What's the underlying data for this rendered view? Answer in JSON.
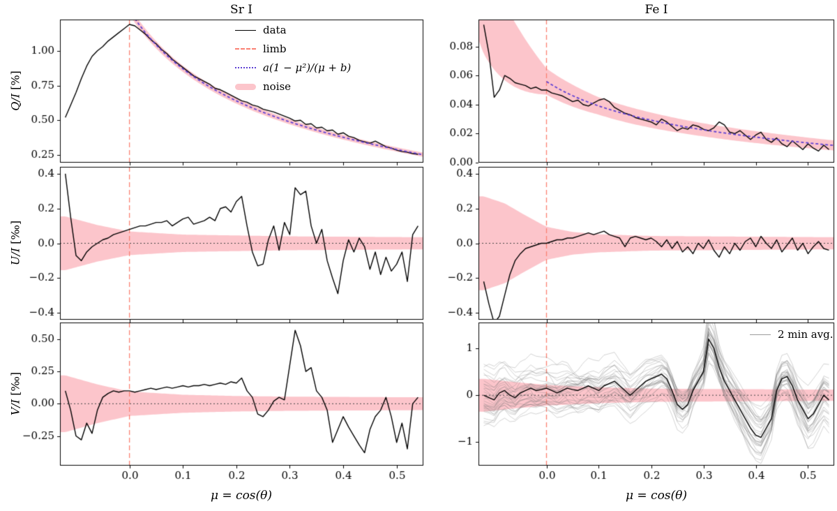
{
  "chart_data": {
    "type": "line",
    "titles": {
      "left": "Sr I",
      "right": "Fe I"
    },
    "xlabel": "μ = cos(θ)",
    "ylabels": {
      "q_math": "Q/I",
      "q_unit": " [%]",
      "u_math": "U/I",
      "u_unit": " [‰]",
      "v_math": "V/I",
      "v_unit": " [‰]"
    },
    "legend": {
      "data": "data",
      "limb": "limb",
      "fit": "a(1 − μ²)/(μ + b)",
      "noise": "noise",
      "avg": "2 min avg."
    },
    "colors": {
      "data": "#000000",
      "limb": "#fa8072",
      "fit": "#5d3fd3",
      "noise": "rgba(249,117,131,0.42)",
      "zero": "#444444",
      "ensemble": "rgba(110,110,110,0.30)"
    },
    "xlim": [
      -0.13,
      0.55
    ],
    "xticks": [
      0.0,
      0.1,
      0.2,
      0.3,
      0.4,
      0.5
    ],
    "xtick_labels": [
      "0.0",
      "0.1",
      "0.2",
      "0.3",
      "0.4",
      "0.5"
    ],
    "x": [
      -0.12,
      -0.11,
      -0.1,
      -0.09,
      -0.08,
      -0.07,
      -0.06,
      -0.05,
      -0.04,
      -0.03,
      -0.02,
      -0.01,
      0.0,
      0.01,
      0.02,
      0.03,
      0.04,
      0.05,
      0.06,
      0.07,
      0.08,
      0.09,
      0.1,
      0.11,
      0.12,
      0.13,
      0.14,
      0.15,
      0.16,
      0.17,
      0.18,
      0.19,
      0.2,
      0.21,
      0.22,
      0.23,
      0.24,
      0.25,
      0.26,
      0.27,
      0.28,
      0.29,
      0.3,
      0.31,
      0.32,
      0.33,
      0.34,
      0.35,
      0.36,
      0.37,
      0.38,
      0.39,
      0.4,
      0.41,
      0.42,
      0.43,
      0.44,
      0.45,
      0.46,
      0.47,
      0.48,
      0.49,
      0.5,
      0.51,
      0.52,
      0.53,
      0.54
    ],
    "panels": [
      {
        "key": "sr_q",
        "row": 0,
        "col": 0,
        "ylim": [
          0.195,
          1.225
        ],
        "yticks": [
          0.25,
          0.5,
          0.75,
          1.0
        ],
        "ytick_labels": [
          "0.25",
          "0.50",
          "0.75",
          "1.00"
        ],
        "fit": {
          "a": 0.276,
          "b": 0.214
        },
        "band_center": "fit",
        "band_halfwidth": [
          [
            -0.12,
            0.05
          ],
          [
            0.0,
            0.03
          ],
          [
            0.1,
            0.022
          ],
          [
            0.3,
            0.018
          ],
          [
            0.54,
            0.015
          ]
        ],
        "zero_line": false,
        "values": [
          0.52,
          0.61,
          0.7,
          0.8,
          0.89,
          0.96,
          1.0,
          1.03,
          1.07,
          1.1,
          1.13,
          1.16,
          1.19,
          1.18,
          1.15,
          1.12,
          1.08,
          1.05,
          1.01,
          0.98,
          0.94,
          0.91,
          0.88,
          0.85,
          0.82,
          0.8,
          0.78,
          0.76,
          0.73,
          0.72,
          0.7,
          0.68,
          0.66,
          0.64,
          0.63,
          0.61,
          0.6,
          0.58,
          0.57,
          0.56,
          0.545,
          0.53,
          0.515,
          0.495,
          0.5,
          0.47,
          0.475,
          0.445,
          0.45,
          0.425,
          0.43,
          0.4,
          0.41,
          0.385,
          0.375,
          0.355,
          0.345,
          0.335,
          0.35,
          0.33,
          0.31,
          0.3,
          0.285,
          0.275,
          0.27,
          0.26,
          0.255
        ]
      },
      {
        "key": "fe_q",
        "row": 0,
        "col": 1,
        "ylim": [
          0.0,
          0.0985
        ],
        "yticks": [
          0.0,
          0.02,
          0.04,
          0.06,
          0.08
        ],
        "ytick_labels": [
          "0.00",
          "0.02",
          "0.04",
          "0.06",
          "0.08"
        ],
        "fit": {
          "a": 0.0134,
          "b": 0.24
        },
        "band_center": "fit",
        "band_halfwidth": [
          [
            -0.12,
            0.035
          ],
          [
            -0.05,
            0.02
          ],
          [
            0.0,
            0.009
          ],
          [
            0.1,
            0.006
          ],
          [
            0.3,
            0.0045
          ],
          [
            0.54,
            0.0035
          ]
        ],
        "zero_line": false,
        "values": [
          0.095,
          0.075,
          0.045,
          0.05,
          0.06,
          0.058,
          0.055,
          0.054,
          0.053,
          0.051,
          0.052,
          0.05,
          0.05,
          0.048,
          0.047,
          0.046,
          0.044,
          0.042,
          0.043,
          0.04,
          0.039,
          0.041,
          0.043,
          0.044,
          0.042,
          0.038,
          0.036,
          0.034,
          0.033,
          0.031,
          0.03,
          0.029,
          0.028,
          0.026,
          0.03,
          0.028,
          0.025,
          0.022,
          0.024,
          0.023,
          0.026,
          0.025,
          0.023,
          0.022,
          0.024,
          0.028,
          0.026,
          0.021,
          0.02,
          0.022,
          0.019,
          0.016,
          0.019,
          0.021,
          0.016,
          0.014,
          0.017,
          0.013,
          0.011,
          0.015,
          0.012,
          0.009,
          0.013,
          0.01,
          0.008,
          0.012,
          0.009
        ]
      },
      {
        "key": "sr_u",
        "row": 1,
        "col": 0,
        "ylim": [
          -0.44,
          0.44
        ],
        "yticks": [
          -0.4,
          -0.2,
          0.0,
          0.2,
          0.4
        ],
        "ytick_labels": [
          "−0.4",
          "−0.2",
          "0.0",
          "0.2",
          "0.4"
        ],
        "band_center": "zero",
        "band_halfwidth": [
          [
            -0.12,
            0.155
          ],
          [
            -0.06,
            0.105
          ],
          [
            0.0,
            0.068
          ],
          [
            0.1,
            0.05
          ],
          [
            0.2,
            0.045
          ],
          [
            0.3,
            0.04
          ],
          [
            0.54,
            0.035
          ]
        ],
        "zero_line": true,
        "values": [
          0.4,
          0.15,
          -0.07,
          -0.1,
          -0.05,
          -0.02,
          0.0,
          0.02,
          0.03,
          0.05,
          0.06,
          0.07,
          0.08,
          0.09,
          0.1,
          0.1,
          0.11,
          0.12,
          0.12,
          0.13,
          0.1,
          0.12,
          0.14,
          0.15,
          0.11,
          0.12,
          0.13,
          0.15,
          0.13,
          0.2,
          0.21,
          0.18,
          0.24,
          0.27,
          0.1,
          -0.05,
          -0.13,
          -0.12,
          0.02,
          0.1,
          -0.04,
          0.12,
          0.05,
          0.32,
          0.28,
          0.3,
          0.1,
          0.0,
          0.08,
          -0.1,
          -0.2,
          -0.29,
          -0.1,
          0.02,
          -0.05,
          0.03,
          -0.02,
          -0.15,
          -0.05,
          -0.18,
          -0.08,
          -0.16,
          -0.12,
          -0.05,
          -0.22,
          0.05,
          0.1
        ]
      },
      {
        "key": "fe_u",
        "row": 1,
        "col": 1,
        "ylim": [
          -0.44,
          0.44
        ],
        "yticks": [
          -0.4,
          -0.2,
          0.0,
          0.2,
          0.4
        ],
        "ytick_labels": [
          "−0.4",
          "−0.2",
          "0.0",
          "0.2",
          "0.4"
        ],
        "band_center": "zero",
        "band_halfwidth": [
          [
            -0.12,
            0.27
          ],
          [
            -0.08,
            0.23
          ],
          [
            -0.04,
            0.16
          ],
          [
            0.0,
            0.095
          ],
          [
            0.05,
            0.065
          ],
          [
            0.1,
            0.052
          ],
          [
            0.2,
            0.042
          ],
          [
            0.54,
            0.035
          ]
        ],
        "zero_line": true,
        "values": [
          -0.22,
          -0.35,
          -0.46,
          -0.42,
          -0.3,
          -0.18,
          -0.1,
          -0.06,
          -0.03,
          -0.02,
          -0.01,
          0.0,
          0.0,
          0.01,
          0.02,
          0.02,
          0.03,
          0.03,
          0.04,
          0.05,
          0.06,
          0.05,
          0.06,
          0.07,
          0.05,
          0.04,
          0.03,
          -0.02,
          0.03,
          0.04,
          0.03,
          0.02,
          0.03,
          0.01,
          -0.02,
          0.02,
          -0.03,
          0.01,
          -0.05,
          -0.02,
          -0.06,
          0.0,
          -0.03,
          0.02,
          -0.04,
          -0.08,
          -0.02,
          -0.06,
          0.0,
          -0.04,
          0.01,
          0.03,
          -0.02,
          0.04,
          0.0,
          -0.03,
          0.02,
          -0.05,
          -0.01,
          0.03,
          -0.04,
          0.0,
          -0.06,
          -0.02,
          0.01,
          -0.03,
          -0.04
        ]
      },
      {
        "key": "sr_v",
        "row": 2,
        "col": 0,
        "ylim": [
          -0.48,
          0.63
        ],
        "yticks": [
          -0.25,
          0.0,
          0.25,
          0.5
        ],
        "ytick_labels": [
          "−0.25",
          "0.00",
          "0.25",
          "0.50"
        ],
        "band_center": "zero",
        "band_halfwidth": [
          [
            -0.12,
            0.22
          ],
          [
            -0.06,
            0.15
          ],
          [
            0.0,
            0.095
          ],
          [
            0.1,
            0.07
          ],
          [
            0.2,
            0.06
          ],
          [
            0.3,
            0.055
          ],
          [
            0.54,
            0.05
          ]
        ],
        "zero_line": true,
        "values": [
          0.1,
          -0.05,
          -0.25,
          -0.28,
          -0.15,
          -0.23,
          -0.05,
          0.05,
          0.08,
          0.1,
          0.09,
          0.1,
          0.1,
          0.09,
          0.1,
          0.11,
          0.12,
          0.11,
          0.12,
          0.13,
          0.12,
          0.13,
          0.14,
          0.13,
          0.14,
          0.14,
          0.15,
          0.14,
          0.15,
          0.16,
          0.15,
          0.17,
          0.16,
          0.2,
          0.1,
          0.05,
          -0.08,
          -0.1,
          -0.05,
          0.02,
          0.05,
          0.03,
          0.3,
          0.57,
          0.45,
          0.25,
          0.28,
          0.1,
          0.05,
          -0.05,
          -0.3,
          -0.2,
          -0.1,
          -0.18,
          -0.25,
          -0.32,
          -0.38,
          -0.2,
          -0.1,
          -0.05,
          0.05,
          -0.1,
          -0.3,
          -0.15,
          -0.35,
          0.0,
          0.05
        ]
      },
      {
        "key": "fe_v",
        "row": 2,
        "col": 1,
        "ylim": [
          -1.5,
          1.55
        ],
        "yticks": [
          -1,
          0,
          1
        ],
        "ytick_labels": [
          "−1",
          "0",
          "1"
        ],
        "band_center": "zero",
        "band_halfwidth": [
          [
            -0.12,
            0.35
          ],
          [
            -0.06,
            0.28
          ],
          [
            0.0,
            0.22
          ],
          [
            0.1,
            0.17
          ],
          [
            0.2,
            0.14
          ],
          [
            0.54,
            0.12
          ]
        ],
        "zero_line": true,
        "ensemble": {
          "count": 30,
          "amp": 0.5,
          "scale_jitter": 0.6,
          "seed": 20240
        },
        "values": [
          0.0,
          -0.05,
          -0.1,
          0.05,
          0.1,
          0.0,
          -0.05,
          0.05,
          0.1,
          0.15,
          0.1,
          0.12,
          0.15,
          0.1,
          0.05,
          0.1,
          0.15,
          0.12,
          0.1,
          0.15,
          0.2,
          0.15,
          0.1,
          0.2,
          0.25,
          0.3,
          0.2,
          0.1,
          0.0,
          0.1,
          0.2,
          0.3,
          0.35,
          0.4,
          0.45,
          0.35,
          0.1,
          -0.2,
          -0.3,
          -0.2,
          0.1,
          0.3,
          0.5,
          1.2,
          1.0,
          0.6,
          0.3,
          0.1,
          -0.1,
          -0.3,
          -0.5,
          -0.7,
          -0.85,
          -0.9,
          -0.7,
          -0.5,
          0.1,
          0.35,
          0.4,
          0.2,
          -0.1,
          -0.3,
          -0.5,
          -0.4,
          -0.2,
          0.0,
          -0.1
        ]
      }
    ]
  }
}
